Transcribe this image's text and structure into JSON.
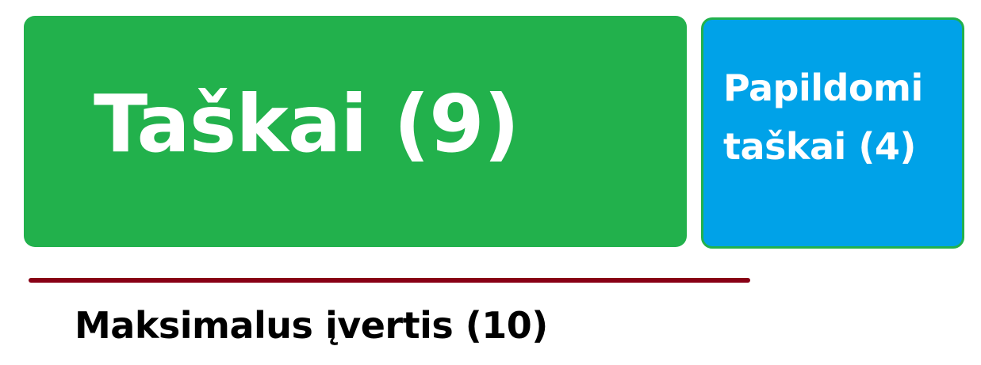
{
  "boxes": {
    "main": {
      "label": "Taškai (9)",
      "color": "#22b14c"
    },
    "extra": {
      "label": "Papildomi\ntaškai (4)",
      "color": "#00a2e8",
      "border_color": "#22b14c"
    }
  },
  "max": {
    "label": "Maksimalus įvertis (10)",
    "line_color": "#880015"
  }
}
